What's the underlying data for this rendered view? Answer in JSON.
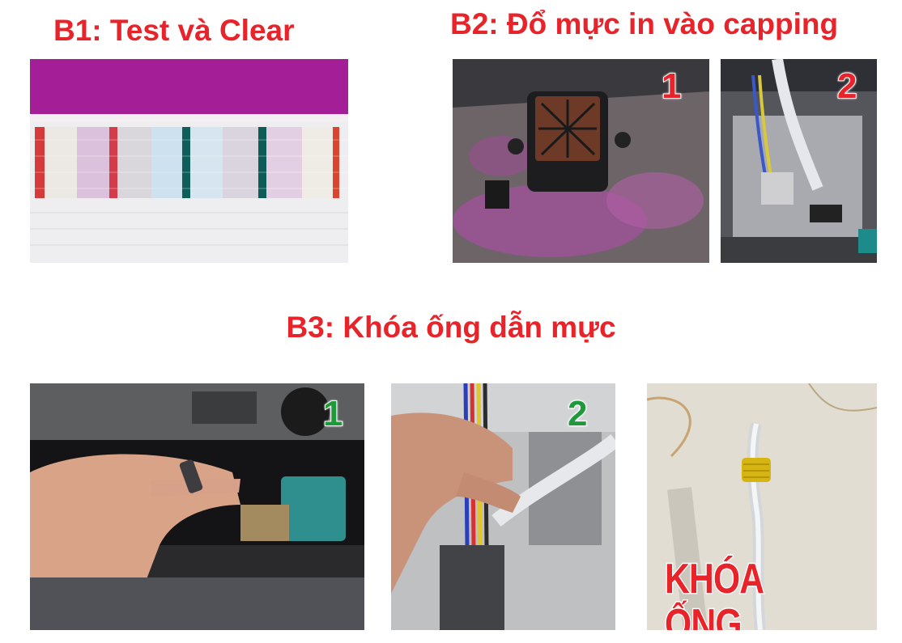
{
  "steps": [
    {
      "title": "B1: Test và Clear"
    },
    {
      "title": "B2: Đổ mực in vào capping",
      "badges": [
        "1",
        "2"
      ]
    },
    {
      "title": "B3: Khóa ống dẫn mực",
      "badges": [
        "1",
        "2"
      ],
      "overlay": "KHÓA ỐNG"
    }
  ],
  "colors": {
    "heading": "#e8232a",
    "badge_red": "#e8232a",
    "badge_green": "#1e9a3c"
  }
}
